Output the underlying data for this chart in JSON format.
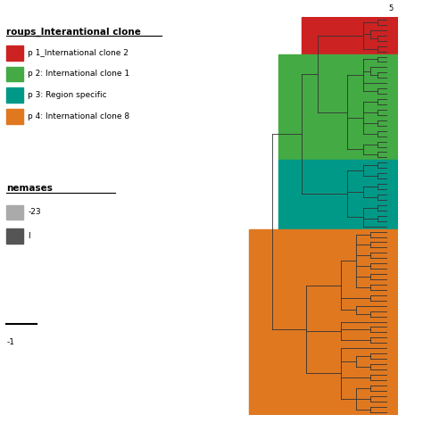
{
  "bg_color": "#ffffff",
  "colors": {
    "red": "#cc2222",
    "green": "#44aa44",
    "teal": "#009988",
    "orange": "#e07820"
  },
  "groups_title": "roups_Interantional clone",
  "legend_groups": [
    {
      "label": "p 1_International clone 2",
      "color": "#cc2222"
    },
    {
      "label": "p 2: International clone 1",
      "color": "#44aa44"
    },
    {
      "label": "p 3: Region specific",
      "color": "#009988"
    },
    {
      "label": "p 4: International clone 8",
      "color": "#e07820"
    }
  ],
  "carbapenemases_title": "nemases",
  "scale_label": "-1",
  "red_count": 7,
  "green_count": 20,
  "teal_count": 13,
  "orange_count": 35
}
